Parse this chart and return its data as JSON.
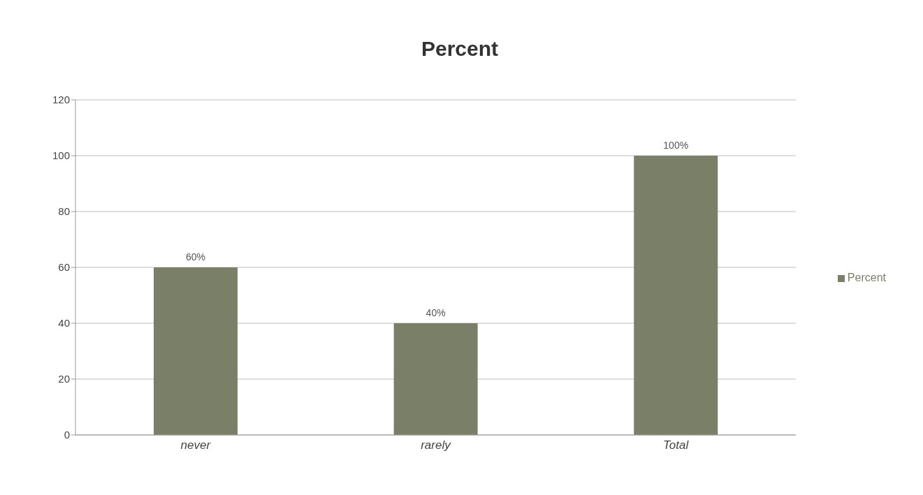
{
  "chart_data": {
    "type": "bar",
    "title": "Percent",
    "categories": [
      "never",
      "rarely",
      "Total"
    ],
    "series": [
      {
        "name": "Percent",
        "color": "#7a7f68",
        "values": [
          60,
          40,
          100
        ],
        "value_labels": [
          "60%",
          "40%",
          "100%"
        ]
      }
    ],
    "ylim": [
      0,
      120
    ],
    "yticks": [
      0,
      20,
      40,
      60,
      80,
      100,
      120
    ],
    "grid": "y",
    "legend": "right"
  }
}
